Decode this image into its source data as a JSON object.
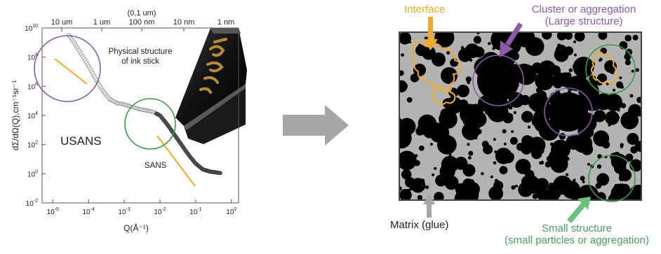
{
  "plot": {
    "top_axis_unit": "(0,1 um)",
    "top_ticks": [
      "10 um",
      "1 um",
      "100 nm",
      "10 nm",
      "1 nm"
    ],
    "y_label": "dΣ/dΩ(Q),cm⁻¹sr⁻¹",
    "x_label": "Q(Å⁻¹)",
    "y_ticks": [
      {
        "base": "10",
        "exp": "10"
      },
      {
        "base": "10",
        "exp": "8"
      },
      {
        "base": "10",
        "exp": "6"
      },
      {
        "base": "10",
        "exp": "4"
      },
      {
        "base": "10",
        "exp": "2"
      },
      {
        "base": "10",
        "exp": "0"
      },
      {
        "base": "10",
        "exp": "-2"
      }
    ],
    "x_ticks": [
      {
        "base": "10",
        "exp": "-5"
      },
      {
        "base": "10",
        "exp": "-4"
      },
      {
        "base": "10",
        "exp": "-3"
      },
      {
        "base": "10",
        "exp": "-2"
      },
      {
        "base": "10",
        "exp": "-1"
      },
      {
        "base": "10",
        "exp": "0"
      }
    ],
    "physical_label_line1": "Physical structure",
    "physical_label_line2": "of ink stick",
    "usans_label": "USANS",
    "sans_label": "SANS"
  },
  "structure": {
    "interface_label": "Interface",
    "cluster_label_line1": "Cluster or aggregation",
    "cluster_label_line2": "(Large structure)",
    "matrix_label": "Matrix (glue)",
    "small_label_line1": "Small structure",
    "small_label_line2": "(small particles or aggregation)"
  },
  "colors": {
    "purple": "#8b5aa8",
    "green": "#3a9a4a",
    "orange": "#f0a92a",
    "arrow_gray": "#a6a6a6",
    "matrix_gray": "#b3b3b3",
    "green_label": "#4aa05a"
  }
}
